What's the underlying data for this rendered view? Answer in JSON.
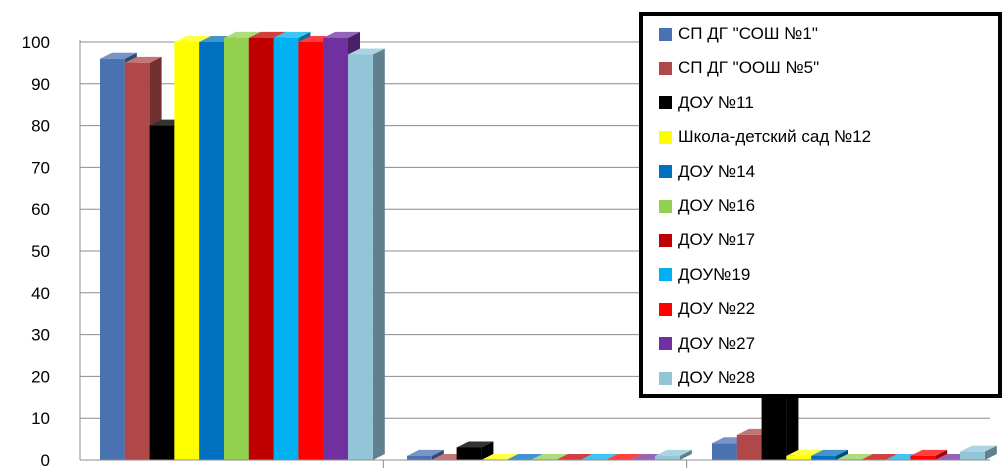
{
  "chart_data": {
    "type": "bar",
    "categories": [
      "",
      "",
      ""
    ],
    "ylim": [
      0,
      100
    ],
    "y_ticks": [
      "0",
      "10",
      "20",
      "30",
      "40",
      "50",
      "60",
      "70",
      "80",
      "90",
      "100"
    ],
    "grid": true,
    "legend_position": "top-right",
    "series": [
      {
        "name": "СП ДГ \"СОШ №1\"",
        "color": "#4a72b0",
        "values": [
          96,
          1,
          4
        ]
      },
      {
        "name": "СП ДГ \"ООШ №5\"",
        "color": "#b0484a",
        "values": [
          95,
          0,
          6
        ]
      },
      {
        "name": "ДОУ №11",
        "color": "#000000",
        "values": [
          80,
          3,
          20
        ]
      },
      {
        "name": "Школа-детский сад №12",
        "color": "#ffff00",
        "values": [
          100,
          0,
          1
        ]
      },
      {
        "name": "ДОУ №14",
        "color": "#0070c0",
        "values": [
          100,
          0,
          1
        ]
      },
      {
        "name": "ДОУ №16",
        "color": "#92d050",
        "values": [
          101,
          0,
          0
        ]
      },
      {
        "name": "ДОУ №17",
        "color": "#c00000",
        "values": [
          101,
          0,
          0
        ]
      },
      {
        "name": "ДОУ№19",
        "color": "#00b0f0",
        "values": [
          101,
          0,
          0
        ]
      },
      {
        "name": "ДОУ №22",
        "color": "#ff0000",
        "values": [
          100,
          0,
          1
        ]
      },
      {
        "name": "ДОУ №27",
        "color": "#7030a0",
        "values": [
          101,
          0,
          0
        ]
      },
      {
        "name": "ДОУ №28",
        "color": "#92c5d8",
        "values": [
          97,
          1,
          2
        ]
      }
    ]
  }
}
